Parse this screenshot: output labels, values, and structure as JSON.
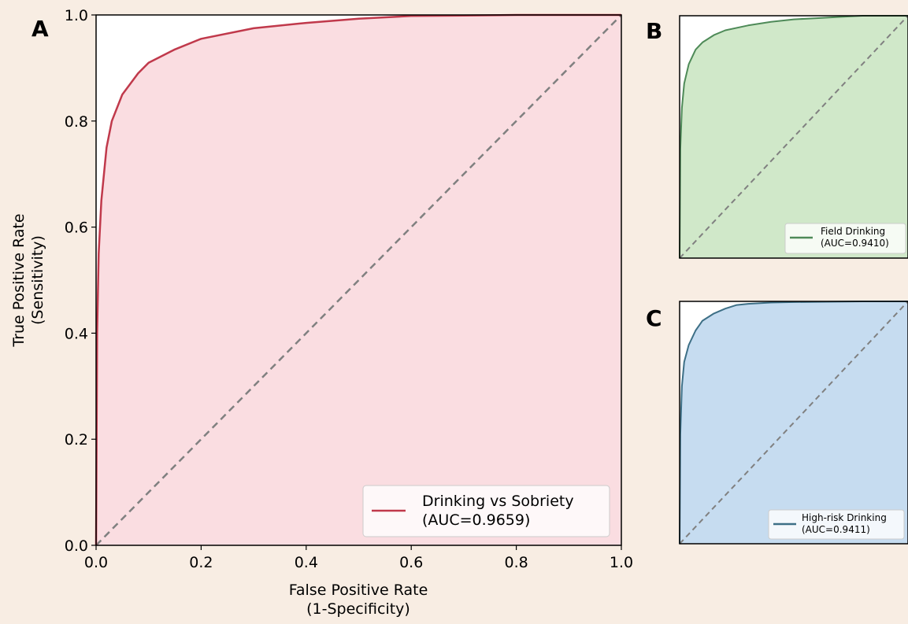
{
  "colors": {
    "background": "#f8ede3",
    "diagonal": "#808080",
    "panel_a_line": "#c0394b",
    "panel_a_fill": "#fadde1",
    "panel_b_line": "#4e8a58",
    "panel_b_fill": "#d0e8c9",
    "panel_c_line": "#3d6f86",
    "panel_c_fill": "#c6dcf0"
  },
  "chart_data": [
    {
      "panel": "A",
      "type": "line",
      "xlabel": [
        "False Positive Rate",
        "(1-Specificity)"
      ],
      "ylabel": [
        "True Positive Rate",
        "(Sensitivity)"
      ],
      "xlim": [
        0,
        1
      ],
      "ylim": [
        0,
        1
      ],
      "x_ticks": [
        "0.0",
        "0.2",
        "0.4",
        "0.6",
        "0.8",
        "1.0"
      ],
      "y_ticks": [
        "0.0",
        "0.2",
        "0.4",
        "0.6",
        "0.8",
        "1.0"
      ],
      "grid": false,
      "legend": {
        "placement": "lower-right",
        "lines": [
          "Drinking vs Sobriety",
          "(AUC=0.9659)"
        ]
      },
      "series": [
        {
          "name": "Drinking vs Sobriety (AUC=0.9659)",
          "x": [
            0,
            0.002,
            0.005,
            0.01,
            0.02,
            0.03,
            0.05,
            0.08,
            0.1,
            0.15,
            0.2,
            0.3,
            0.4,
            0.5,
            0.6,
            0.7,
            0.8,
            0.9,
            1.0
          ],
          "y": [
            0,
            0.4,
            0.55,
            0.65,
            0.75,
            0.8,
            0.85,
            0.89,
            0.91,
            0.935,
            0.955,
            0.975,
            0.985,
            0.993,
            0.998,
            0.999,
            1.0,
            1.0,
            1.0
          ]
        }
      ],
      "reference_line": "diagonal"
    },
    {
      "panel": "B",
      "type": "line",
      "xlim": [
        0,
        1
      ],
      "ylim": [
        0,
        1
      ],
      "legend": {
        "placement": "lower-right",
        "lines": [
          "Field Drinking",
          "(AUC=0.9410)"
        ]
      },
      "series": [
        {
          "name": "Field Drinking (AUC=0.9410)",
          "x": [
            0,
            0.003,
            0.01,
            0.02,
            0.04,
            0.07,
            0.1,
            0.15,
            0.2,
            0.3,
            0.4,
            0.5,
            0.6,
            0.7,
            0.8,
            0.9,
            1.0
          ],
          "y": [
            0,
            0.45,
            0.62,
            0.72,
            0.8,
            0.86,
            0.89,
            0.92,
            0.94,
            0.96,
            0.975,
            0.985,
            0.99,
            0.995,
            1.0,
            1.0,
            1.0
          ]
        }
      ],
      "reference_line": "diagonal"
    },
    {
      "panel": "C",
      "type": "line",
      "xlim": [
        0,
        1
      ],
      "ylim": [
        0,
        1
      ],
      "legend": {
        "placement": "lower-right",
        "lines": [
          "High-risk Drinking",
          "(AUC=0.9411)"
        ]
      },
      "series": [
        {
          "name": "High-risk Drinking (AUC=0.9411)",
          "x": [
            0,
            0.003,
            0.01,
            0.02,
            0.04,
            0.07,
            0.1,
            0.15,
            0.2,
            0.25,
            0.3,
            0.4,
            0.5,
            0.6,
            0.8,
            1.0
          ],
          "y": [
            0,
            0.45,
            0.65,
            0.75,
            0.82,
            0.88,
            0.92,
            0.95,
            0.97,
            0.985,
            0.99,
            0.995,
            0.997,
            0.998,
            1.0,
            1.0
          ]
        }
      ],
      "reference_line": "diagonal"
    }
  ]
}
